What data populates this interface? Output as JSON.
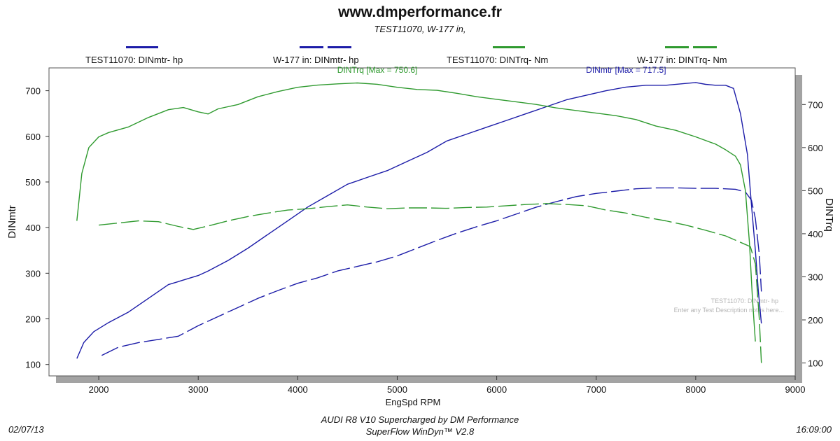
{
  "header": {
    "site": "www.dmperformance.fr",
    "subtitle": "TEST11070, W-177 in,"
  },
  "legend": [
    {
      "label": "TEST11070: DINmtr-  hp",
      "color": "#1c1ca8",
      "style": "solid"
    },
    {
      "label": "W-177 in: DINmtr-  hp",
      "color": "#1c1ca8",
      "style": "dashed"
    },
    {
      "label": "TEST11070: DINTrq-  Nm",
      "color": "#2f9a2f",
      "style": "solid"
    },
    {
      "label": "W-177 in: DINTrq-  Nm",
      "color": "#2f9a2f",
      "style": "dashed"
    }
  ],
  "footer": {
    "line1": "AUDI R8 V10 Supercharged by DM Performance",
    "line2": "SuperFlow WinDyn™ V2.8",
    "date": "02/07/13",
    "time": "16:09:00"
  },
  "colors": {
    "power": "#1c1ca8",
    "torque": "#2f9a2f",
    "plot_shadow": "#a3a3a3",
    "watermark": "#b5b5b5"
  },
  "chart_data": {
    "type": "line",
    "xlabel": "EngSpd  RPM",
    "ylabel": "DINmtr",
    "y2label": "DINTrq",
    "xlim": [
      1500,
      9000
    ],
    "ylim": [
      75,
      750
    ],
    "y2lim": [
      70,
      785
    ],
    "xticks": [
      2000,
      3000,
      4000,
      5000,
      6000,
      7000,
      8000,
      9000
    ],
    "yticks": [
      100,
      200,
      300,
      400,
      500,
      600,
      700
    ],
    "y2ticks": [
      100,
      200,
      300,
      400,
      500,
      600,
      700
    ],
    "grid": false,
    "annotations": [
      {
        "text": "DINTrq [Max = 750.6]",
        "x": 4800,
        "y": 718,
        "color": "torque"
      },
      {
        "text": "DINmtr [Max = 717.5]",
        "x": 7300,
        "y": 718,
        "color": "power"
      }
    ],
    "watermark": [
      "TEST11070: DINmtr-  hp",
      "Enter any Test Description notes here..."
    ],
    "series": [
      {
        "name": "TEST11070: DINmtr-  hp",
        "axis": "left",
        "color": "power",
        "dash": false,
        "x": [
          1780,
          1850,
          1950,
          2100,
          2300,
          2500,
          2700,
          2850,
          3000,
          3100,
          3300,
          3500,
          3700,
          3900,
          4100,
          4300,
          4500,
          4700,
          4900,
          5100,
          5300,
          5500,
          5700,
          5900,
          6100,
          6300,
          6500,
          6700,
          6900,
          7100,
          7300,
          7500,
          7700,
          7900,
          8000,
          8100,
          8200,
          8300,
          8380,
          8450,
          8520,
          8560,
          8600,
          8630,
          8660
        ],
        "y": [
          113,
          148,
          172,
          192,
          215,
          245,
          275,
          285,
          295,
          305,
          328,
          355,
          385,
          415,
          445,
          470,
          495,
          510,
          525,
          545,
          565,
          590,
          605,
          620,
          635,
          650,
          665,
          680,
          690,
          700,
          708,
          712,
          712,
          716,
          718,
          714,
          712,
          712,
          705,
          650,
          560,
          450,
          350,
          260,
          190
        ]
      },
      {
        "name": "W-177 in: DINmtr-  hp",
        "axis": "left",
        "color": "power",
        "dash": true,
        "x": [
          2030,
          2200,
          2400,
          2600,
          2800,
          3000,
          3200,
          3400,
          3600,
          3800,
          4000,
          4200,
          4400,
          4600,
          4800,
          5000,
          5200,
          5400,
          5600,
          5800,
          6000,
          6200,
          6400,
          6600,
          6800,
          7000,
          7200,
          7400,
          7600,
          7800,
          8000,
          8200,
          8400,
          8500,
          8560,
          8600,
          8640,
          8660
        ],
        "y": [
          120,
          138,
          148,
          155,
          162,
          185,
          205,
          225,
          245,
          262,
          278,
          290,
          305,
          315,
          325,
          338,
          355,
          372,
          388,
          402,
          415,
          430,
          445,
          457,
          468,
          475,
          480,
          485,
          487,
          487,
          486,
          486,
          484,
          478,
          460,
          420,
          340,
          260
        ]
      },
      {
        "name": "TEST11070: DINTrq-  Nm",
        "axis": "right",
        "color": "torque",
        "dash": false,
        "x": [
          1780,
          1830,
          1900,
          2000,
          2100,
          2300,
          2500,
          2700,
          2850,
          3000,
          3100,
          3200,
          3400,
          3600,
          3800,
          4000,
          4200,
          4400,
          4600,
          4800,
          5000,
          5200,
          5400,
          5600,
          5800,
          6000,
          6200,
          6400,
          6600,
          6800,
          7000,
          7200,
          7400,
          7600,
          7800,
          8000,
          8200,
          8300,
          8400,
          8450,
          8500,
          8540,
          8570,
          8600
        ],
        "y": [
          430,
          540,
          600,
          625,
          635,
          648,
          670,
          688,
          693,
          683,
          678,
          690,
          700,
          718,
          730,
          740,
          745,
          748,
          750,
          747,
          740,
          735,
          733,
          726,
          718,
          712,
          706,
          700,
          692,
          686,
          680,
          674,
          665,
          650,
          640,
          625,
          608,
          595,
          580,
          560,
          500,
          380,
          250,
          150
        ]
      },
      {
        "name": "W-177 in: DINTrq-  Nm",
        "axis": "right",
        "color": "torque",
        "dash": true,
        "x": [
          2000,
          2200,
          2400,
          2600,
          2800,
          2950,
          3100,
          3300,
          3500,
          3700,
          3900,
          4100,
          4300,
          4500,
          4700,
          4900,
          5100,
          5300,
          5500,
          5700,
          5900,
          6100,
          6300,
          6500,
          6700,
          6900,
          7100,
          7300,
          7500,
          7700,
          7900,
          8100,
          8300,
          8450,
          8550,
          8600,
          8640,
          8660
        ],
        "y": [
          420,
          425,
          430,
          428,
          417,
          410,
          418,
          430,
          440,
          448,
          455,
          458,
          463,
          467,
          462,
          458,
          460,
          460,
          459,
          461,
          462,
          465,
          468,
          470,
          468,
          465,
          455,
          448,
          438,
          430,
          420,
          408,
          395,
          380,
          370,
          330,
          200,
          100
        ]
      }
    ]
  }
}
